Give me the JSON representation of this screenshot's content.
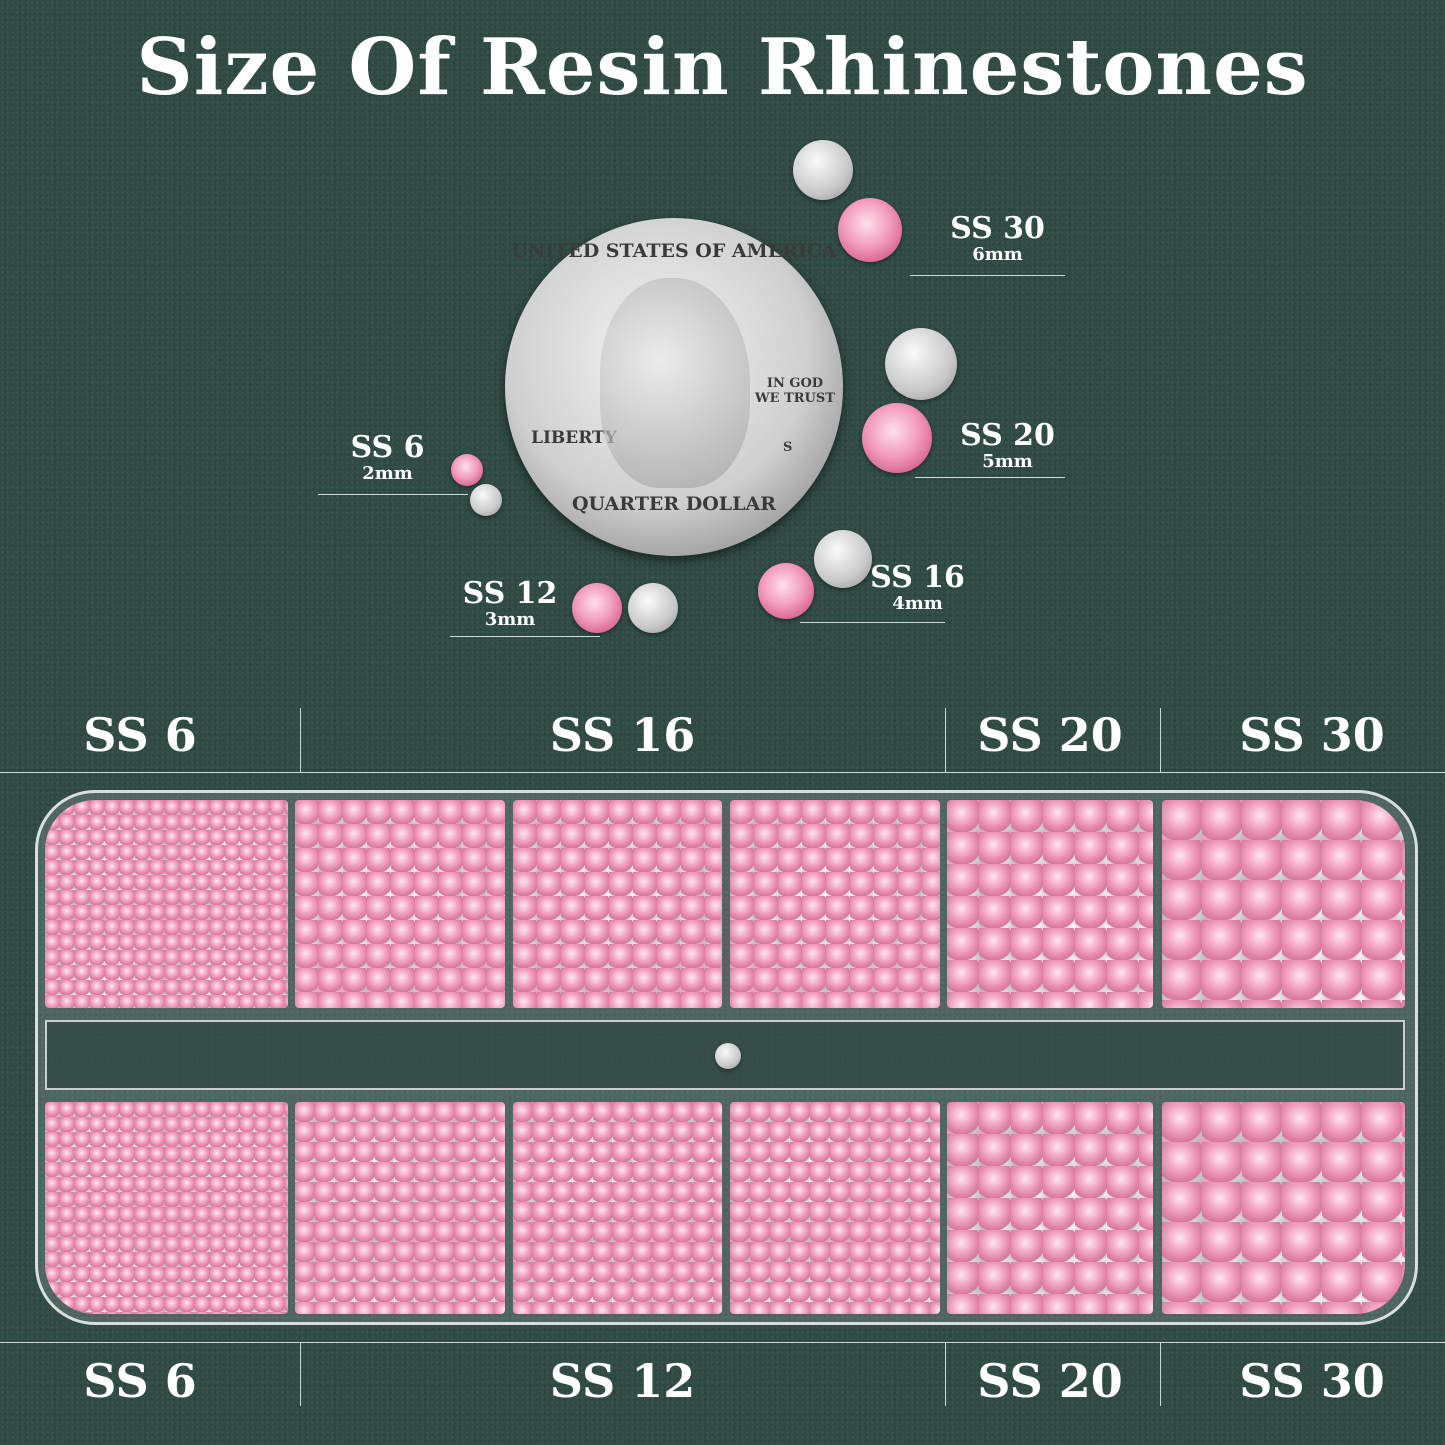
{
  "title": "Size Of Resin Rhinestones",
  "coin": {
    "top_text": "UNITED STATES OF AMERICA",
    "motto": "IN GOD WE TRUST",
    "left_text": "LIBERTY",
    "mint": "S",
    "bottom_text": "QUARTER DOLLAR"
  },
  "sizes": [
    {
      "label": "SS 30",
      "mm": "6mm"
    },
    {
      "label": "SS 20",
      "mm": "5mm"
    },
    {
      "label": "SS 6",
      "mm": "2mm"
    },
    {
      "label": "SS 16",
      "mm": "4mm"
    },
    {
      "label": "SS 12",
      "mm": "3mm"
    }
  ],
  "top_headers": [
    "SS 6",
    "SS 16",
    "SS 20",
    "SS 30"
  ],
  "bottom_headers": [
    "SS 6",
    "SS 12",
    "SS 20",
    "SS 30"
  ],
  "colors": {
    "background": "#2f4b43",
    "stone": "#f29bbb"
  }
}
